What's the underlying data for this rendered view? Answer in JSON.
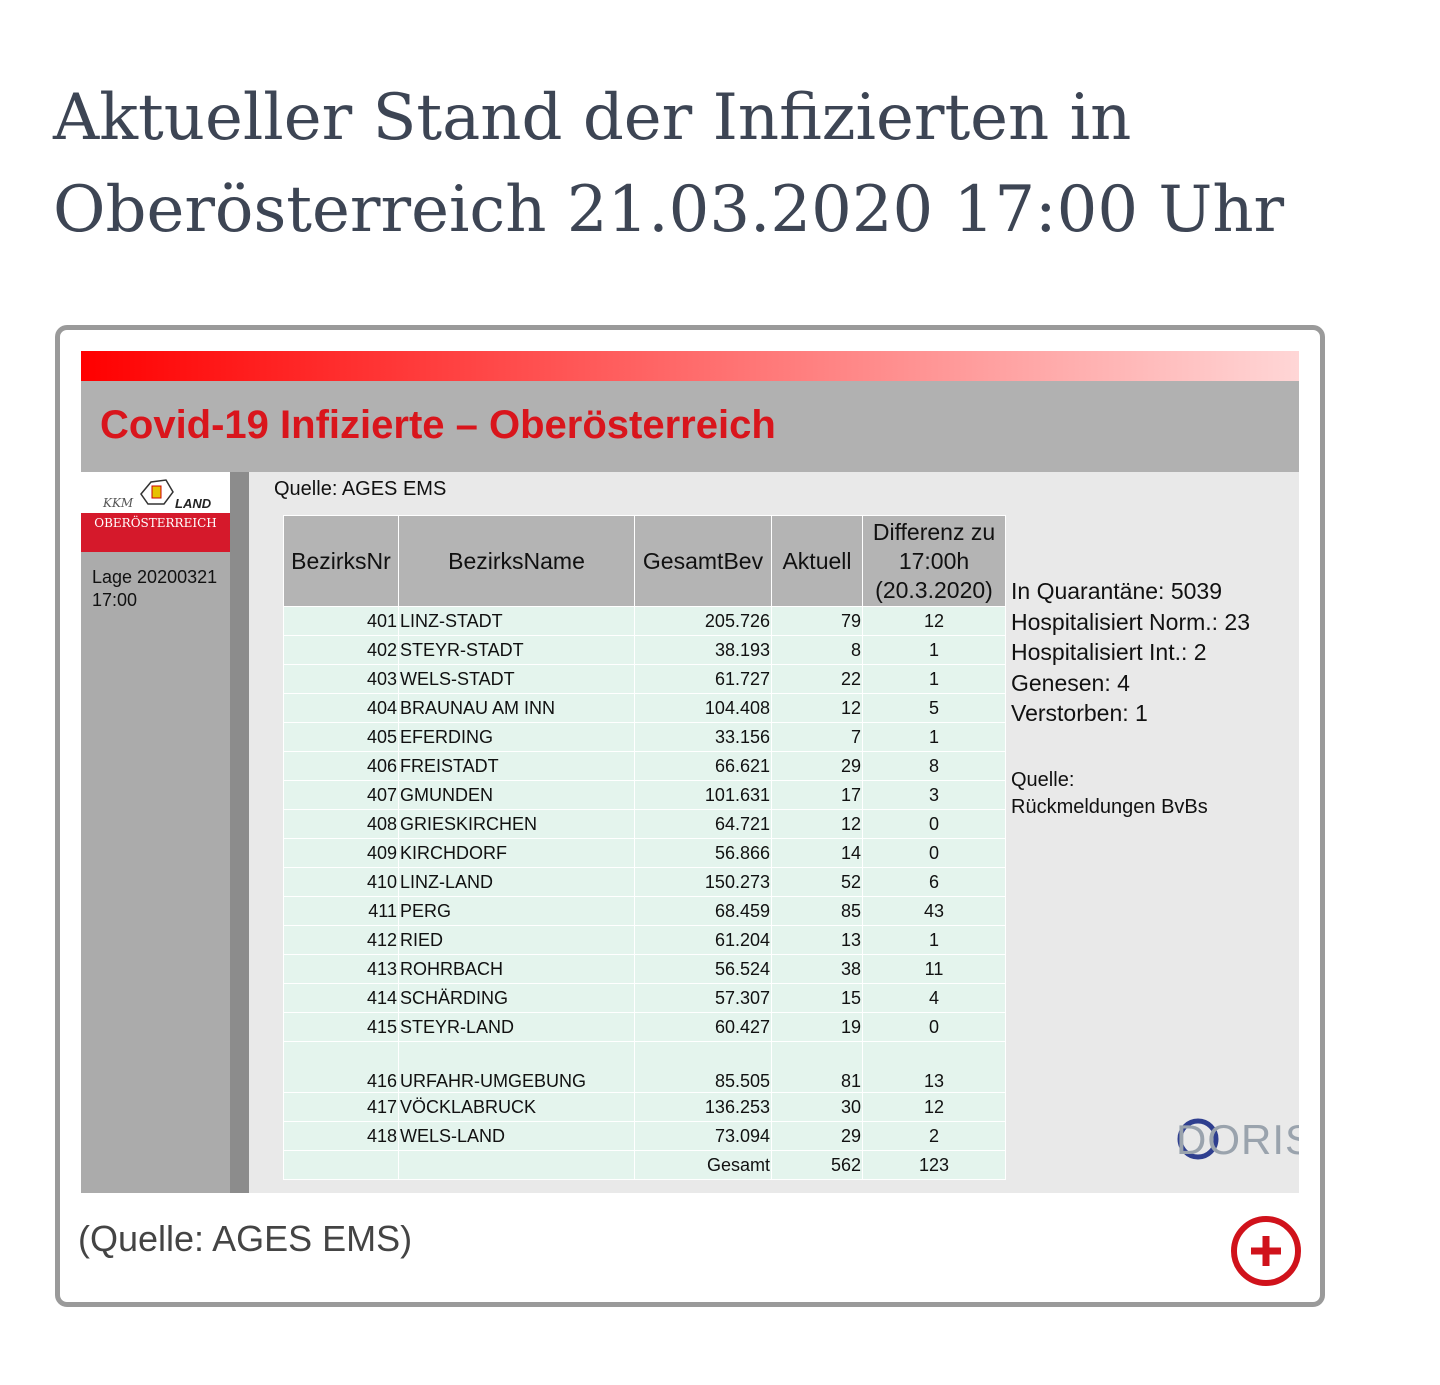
{
  "header": {
    "title": "Aktueller Stand der Infizierten in Oberösterreich 21.03.2020 17:00 Uhr"
  },
  "figure": {
    "slide_title": "Covid-19 Infizierte – Oberösterreich",
    "logo": {
      "top_left": "KKM",
      "top_right": "LAND",
      "band": "OBERÖSTERREICH"
    },
    "lage": [
      "Lage 20200321",
      "17:00"
    ],
    "quelle": "Quelle: AGES EMS",
    "table": {
      "columns": [
        "BezirksNr",
        "BezirksName",
        "GesamtBev",
        "Aktuell",
        [
          "Differenz zu",
          "17:00h",
          "(20.3.2020)"
        ]
      ],
      "rows": [
        [
          "401",
          "LINZ-STADT",
          "205.726",
          "79",
          "12"
        ],
        [
          "402",
          "STEYR-STADT",
          "38.193",
          "8",
          "1"
        ],
        [
          "403",
          "WELS-STADT",
          "61.727",
          "22",
          "1"
        ],
        [
          "404",
          "BRAUNAU AM INN",
          "104.408",
          "12",
          "5"
        ],
        [
          "405",
          "EFERDING",
          "33.156",
          "7",
          "1"
        ],
        [
          "406",
          "FREISTADT",
          "66.621",
          "29",
          "8"
        ],
        [
          "407",
          "GMUNDEN",
          "101.631",
          "17",
          "3"
        ],
        [
          "408",
          "GRIESKIRCHEN",
          "64.721",
          "12",
          "0"
        ],
        [
          "409",
          "KIRCHDORF",
          "56.866",
          "14",
          "0"
        ],
        [
          "410",
          "LINZ-LAND",
          "150.273",
          "52",
          "6"
        ],
        [
          "411",
          "PERG",
          "68.459",
          "85",
          "43"
        ],
        [
          "412",
          "RIED",
          "61.204",
          "13",
          "1"
        ],
        [
          "413",
          "ROHRBACH",
          "56.524",
          "38",
          "11"
        ],
        [
          "414",
          "SCHÄRDING",
          "57.307",
          "15",
          "4"
        ],
        [
          "415",
          "STEYR-LAND",
          "60.427",
          "19",
          "0"
        ],
        [
          "416",
          "URFAHR-UMGEBUNG",
          "85.505",
          "81",
          "13"
        ],
        [
          "417",
          "VÖCKLABRUCK",
          "136.253",
          "30",
          "12"
        ],
        [
          "418",
          "WELS-LAND",
          "73.094",
          "29",
          "2"
        ]
      ],
      "total": {
        "label": "Gesamt",
        "aktuell": "562",
        "differenz": "123"
      }
    },
    "side_info": [
      "In Quarantäne: 5039",
      "Hospitalisiert Norm.: 23",
      "Hospitalisiert Int.: 2",
      "Genesen: 4",
      "Verstorben: 1"
    ],
    "side_source": [
      "Quelle:",
      "Rückmeldungen BvBs"
    ],
    "doris": "DORIS"
  },
  "caption": "(Quelle: AGES EMS)"
}
